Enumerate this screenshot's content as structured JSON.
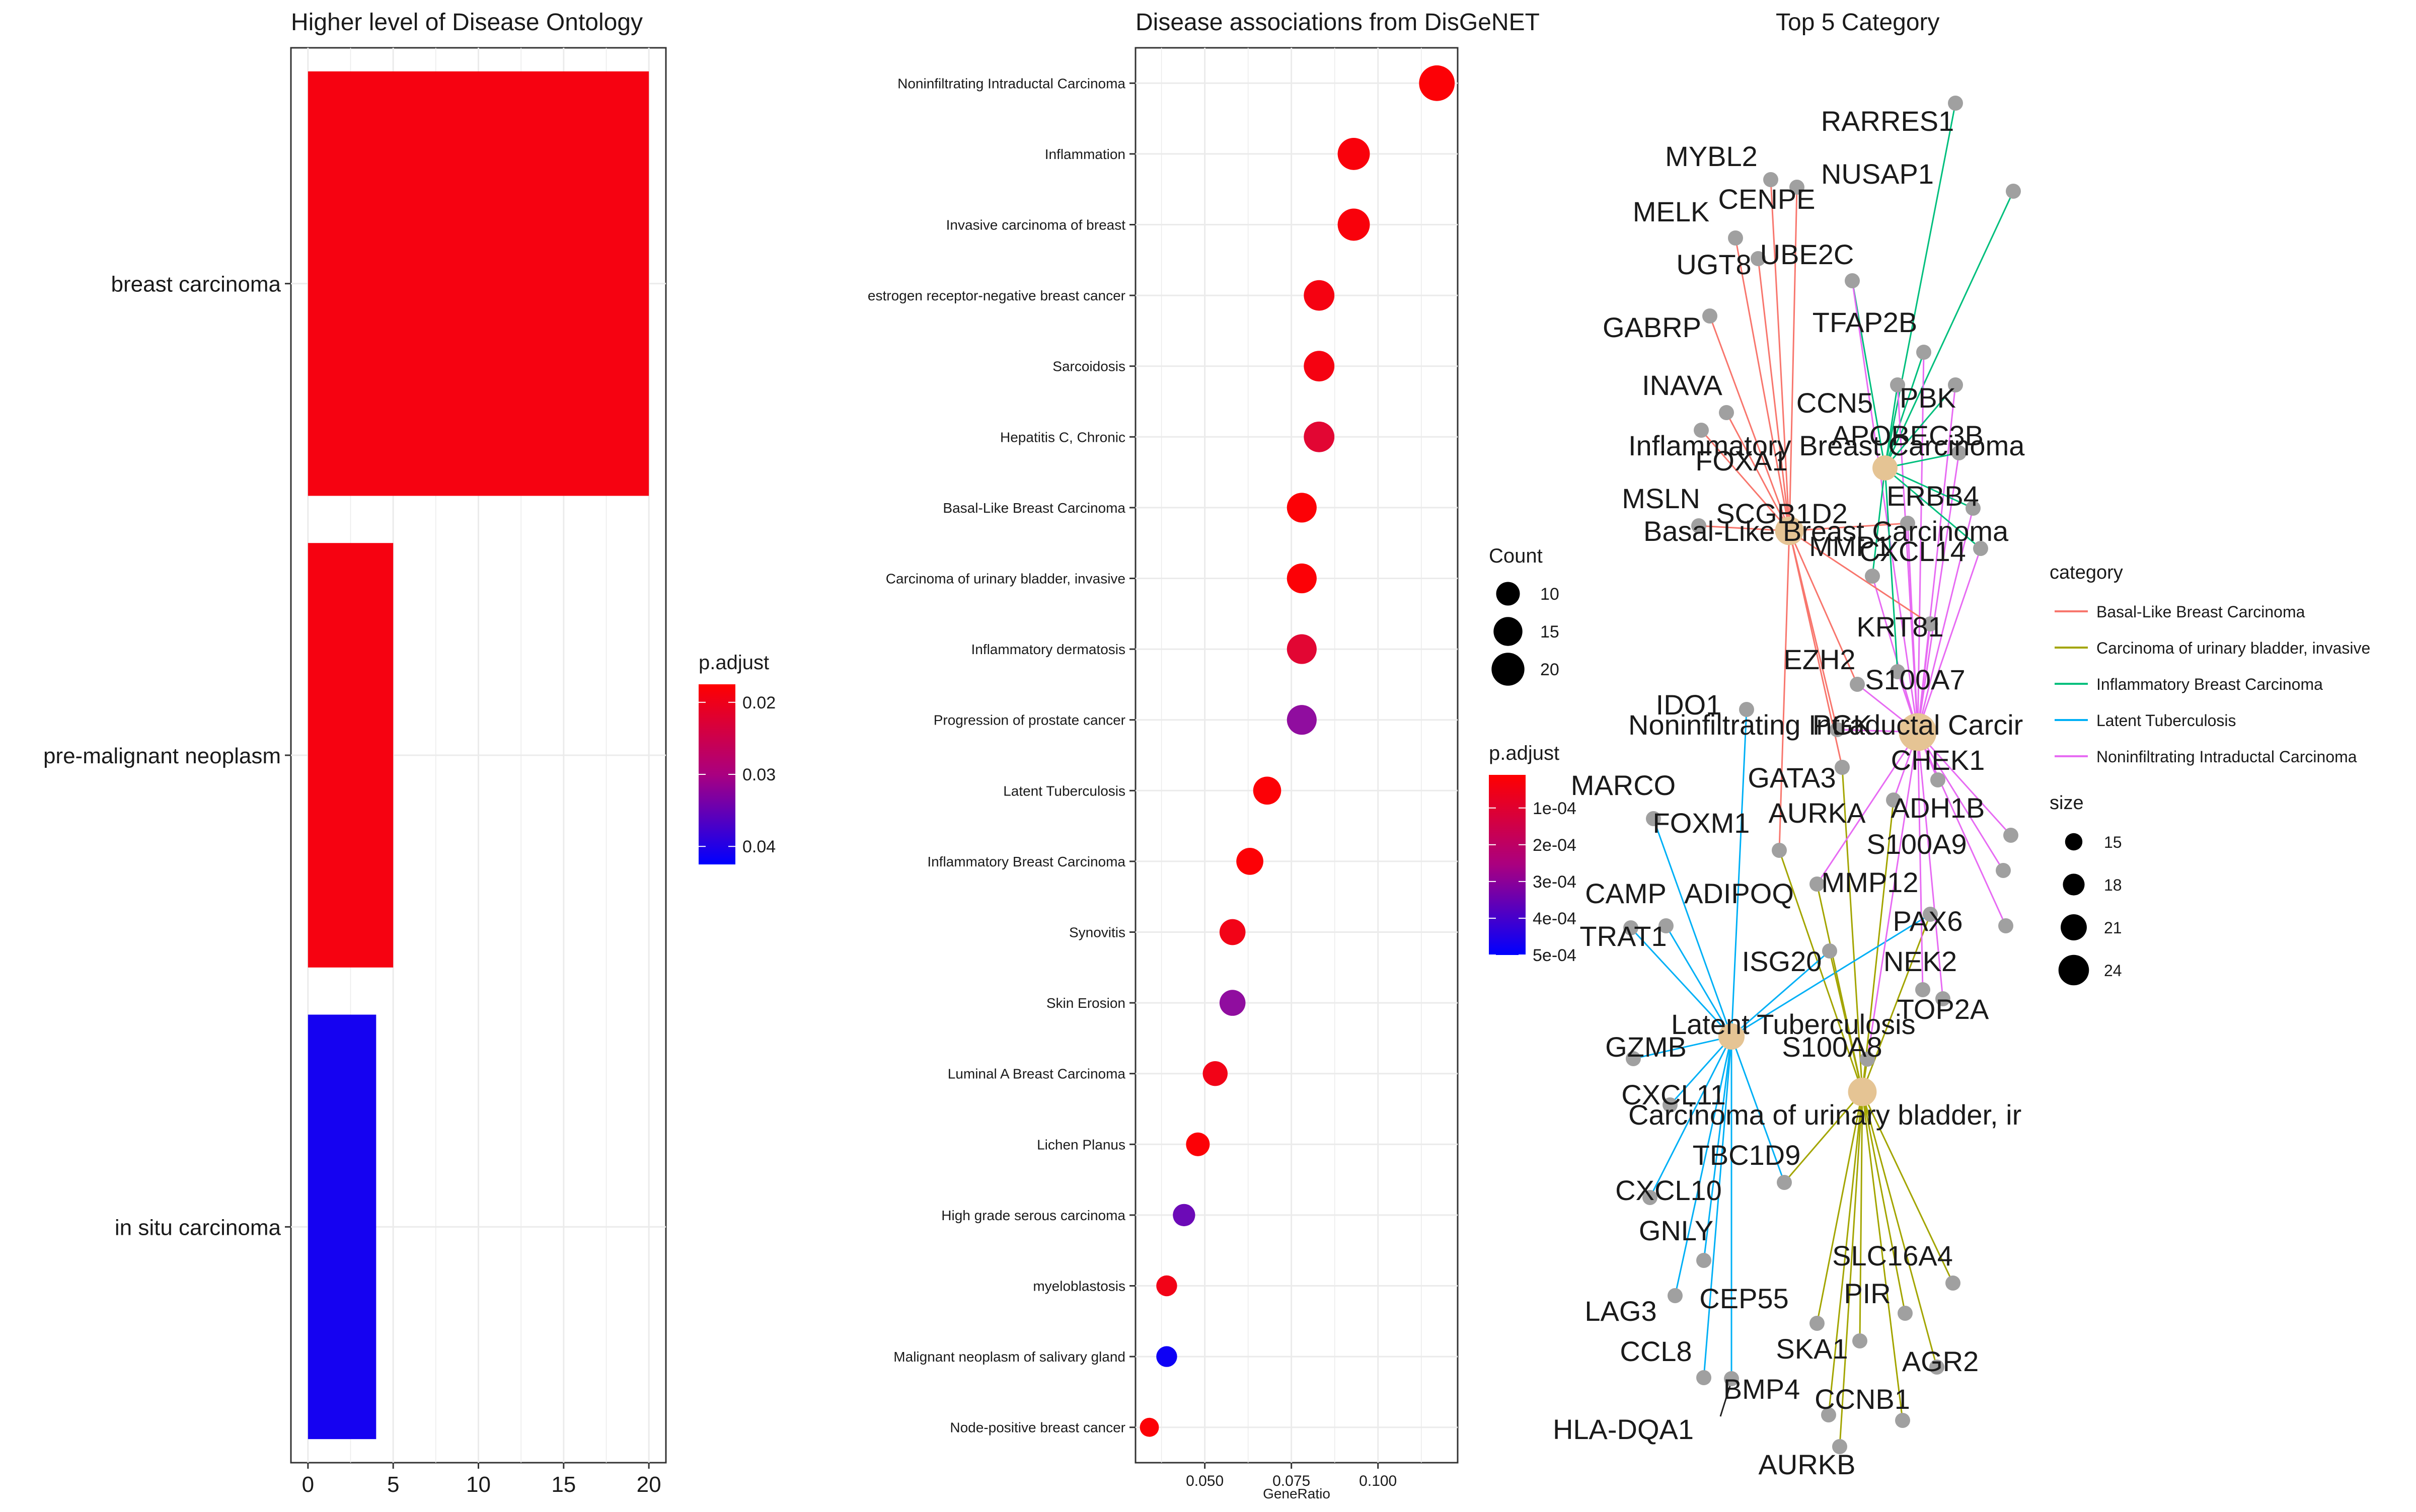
{
  "chart_data": [
    {
      "type": "bar",
      "orientation": "horizontal",
      "title": "Higher level of Disease Ontology",
      "categories": [
        "breast carcinoma",
        "pre-malignant neoplasm",
        "in situ carcinoma"
      ],
      "values": [
        20,
        5,
        4
      ],
      "p_adjust": [
        0.019,
        0.019,
        0.041
      ],
      "xlim": [
        -1,
        21
      ],
      "x_ticks": [
        0,
        5,
        10,
        15,
        20
      ],
      "grid": true,
      "legend": {
        "title": "p.adjust",
        "position": "right",
        "ticks": [
          "0.02",
          "0.03",
          "0.04"
        ],
        "tick_values": [
          0.02,
          0.03,
          0.04
        ],
        "range": [
          0.0175,
          0.0425
        ],
        "low_color": "#ff0000",
        "high_color": "#0000ff"
      }
    },
    {
      "type": "scatter",
      "title": "Disease associations from DisGeNET",
      "xlabel": "GeneRatio",
      "xlim": [
        0.03,
        0.123
      ],
      "x_ticks": [
        0.05,
        0.075,
        0.1
      ],
      "x_tick_labels": [
        "0.050",
        "0.075",
        "0.100"
      ],
      "categories": [
        "Noninfiltrating Intraductal Carcinoma",
        "Inflammation",
        "Invasive carcinoma of breast",
        "estrogen receptor-negative breast cancer",
        "Sarcoidosis",
        "Hepatitis C, Chronic",
        "Basal-Like Breast Carcinoma",
        "Carcinoma of urinary bladder, invasive",
        "Inflammatory dermatosis",
        "Progression of prostate cancer",
        "Latent Tuberculosis",
        "Inflammatory Breast Carcinoma",
        "Synovitis",
        "Skin Erosion",
        "Luminal A Breast Carcinoma",
        "Lichen Planus",
        "High grade serous carcinoma",
        "myeloblastosis",
        "Malignant neoplasm of salivary gland",
        "Node-positive breast cancer"
      ],
      "gene_ratio": [
        0.117,
        0.093,
        0.093,
        0.083,
        0.083,
        0.083,
        0.078,
        0.078,
        0.078,
        0.078,
        0.068,
        0.063,
        0.058,
        0.058,
        0.053,
        0.048,
        0.044,
        0.039,
        0.039,
        0.034
      ],
      "count": [
        24,
        19,
        19,
        17,
        17,
        17,
        16,
        16,
        16,
        16,
        14,
        13,
        12,
        12,
        11,
        10,
        9,
        8,
        8,
        7
      ],
      "p_adjust": [
        2e-05,
        3e-05,
        3e-05,
        4e-05,
        4e-05,
        0.0001,
        2e-05,
        2e-05,
        0.0001,
        0.0003,
        2e-05,
        2e-05,
        5e-05,
        0.0003,
        5e-05,
        2e-05,
        0.00035,
        5e-05,
        0.00048,
        2e-05
      ],
      "grid": true,
      "legend_count": {
        "title": "Count",
        "position": "right",
        "values": [
          10,
          15,
          20
        ],
        "labels": [
          "10",
          "15",
          "20"
        ]
      },
      "legend_padjust": {
        "title": "p.adjust",
        "position": "right",
        "ticks": [
          "1e-04",
          "2e-04",
          "3e-04",
          "4e-04",
          "5e-04"
        ],
        "tick_values": [
          0.0001,
          0.0002,
          0.0003,
          0.0004,
          0.0005
        ],
        "range": [
          1e-05,
          0.0005
        ],
        "low_color": "#ff0000",
        "high_color": "#0000ff"
      }
    },
    {
      "type": "network",
      "title": "Top 5 Category",
      "legend_category": {
        "title": "category",
        "position": "right",
        "items": [
          {
            "name": "Basal-Like Breast Carcinoma",
            "color": "#f8766d"
          },
          {
            "name": "Carcinoma of urinary bladder, invasive",
            "color": "#a3a500"
          },
          {
            "name": "Inflammatory Breast Carcinoma",
            "color": "#00bf7d"
          },
          {
            "name": "Latent Tuberculosis",
            "color": "#00b0f6"
          },
          {
            "name": "Noninfiltrating Intraductal Carcinoma",
            "color": "#e76bf3"
          }
        ]
      },
      "legend_size": {
        "title": "size",
        "position": "right",
        "values": [
          15,
          18,
          21,
          24
        ],
        "labels": [
          "15",
          "18",
          "21",
          "24"
        ]
      },
      "node_color": "#e5c494",
      "gene_color": "#a0a0a0",
      "category_nodes": [
        {
          "label": "Inflammatory Breast Carcinoma",
          "size": 13,
          "category": "Inflammatory Breast Carcinoma"
        },
        {
          "label": "Basal-Like Breast Carcinoma",
          "size": 16,
          "category": "Basal-Like Breast Carcinoma"
        },
        {
          "label": "Noninfiltrating Intraductal Carcir",
          "size": 24,
          "category": "Noninfiltrating Intraductal Carcinoma"
        },
        {
          "label": "Latent Tuberculosis",
          "size": 14,
          "category": "Latent Tuberculosis"
        },
        {
          "label": "Carcinoma of urinary bladder, ir",
          "size": 16,
          "category": "Carcinoma of urinary bladder, invasive"
        }
      ],
      "gene_labels": [
        "RARRES1",
        "NUSAP1",
        "MYBL2",
        "CENPE",
        "MELK",
        "UGT8",
        "UBE2C",
        "GABRP",
        "TFAP2B",
        "INAVA",
        "CCN5",
        "PBK",
        "APOBEC3B",
        "FOXA1",
        "MSLN",
        "SCGB1D2",
        "ERBB4",
        "CXCL14",
        "MMP1",
        "KRT81",
        "EZH2",
        "S100A7",
        "IDO1",
        "PGK",
        "CHEK1",
        "MARCO",
        "GATA3",
        "ADH1B",
        "AURKA",
        "FOXM1",
        "S100A9",
        "CAMP",
        "ADIPOQ",
        "MMP12",
        "TRAT1",
        "PAX6",
        "ISG20",
        "NEK2",
        "TOP2A",
        "S100A8",
        "GZMB",
        "CXCL11",
        "TBC1D9",
        "CXCL10",
        "GNLY",
        "SLC16A4",
        "CEP55",
        "PIR",
        "LAG3",
        "SKA1",
        "AGR2",
        "CCL8",
        "BMP4",
        "CCNB1",
        "HLA-DQA1",
        "AURKB"
      ]
    }
  ]
}
